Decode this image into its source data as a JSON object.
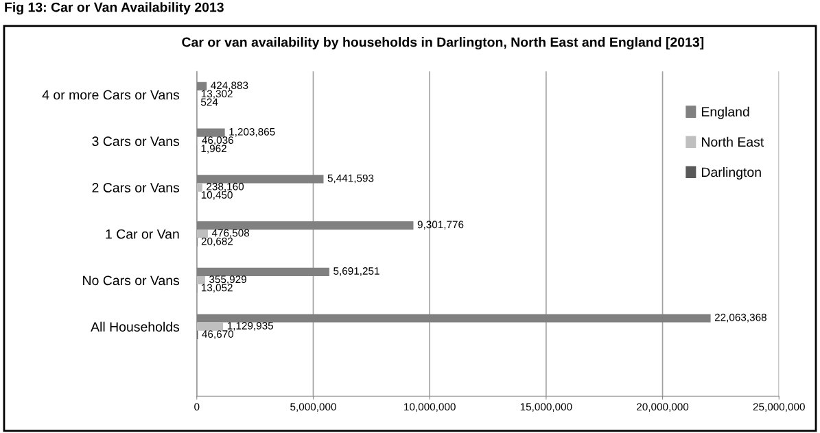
{
  "chart_data": {
    "type": "bar",
    "orientation": "horizontal",
    "title": "Car or van availability by households in Darlington, North East and England [2013]",
    "annotations": [
      "Fig 13: Car or Van Availability 2013"
    ],
    "categories": [
      "4 or more Cars or Vans",
      "3 Cars or Vans",
      "2 Cars or Vans",
      "1 Car or Van",
      "No Cars or Vans",
      "All Households",
      null
    ],
    "series": [
      {
        "name": "England",
        "color": "#808080",
        "values": [
          424883,
          1203865,
          5441593,
          9301776,
          5691251,
          22063368,
          null
        ],
        "value_labels": [
          "424,883",
          "1,203,865",
          "5,441,593",
          "9,301,776",
          "5,691,251",
          "22,063,368",
          null
        ]
      },
      {
        "name": "North East",
        "color": "#bfbfbf",
        "values": [
          13302,
          46036,
          238160,
          476508,
          355929,
          1129935,
          null
        ],
        "value_labels": [
          "13,302",
          "46,036",
          "238,160",
          "476,508",
          "355,929",
          "1,129,935",
          null
        ]
      },
      {
        "name": "Darlington",
        "color": "#595959",
        "values": [
          524,
          1962,
          10450,
          20682,
          13052,
          46670,
          null
        ],
        "value_labels": [
          "524",
          "1,962",
          "10,450",
          "20,682",
          "13,052",
          "46,670",
          null
        ]
      }
    ],
    "xlim": [
      0,
      25000000
    ],
    "xticks": [
      {
        "value": 0,
        "label": "0"
      },
      {
        "value": 5000000,
        "label": "5,000,000"
      },
      {
        "value": 10000000,
        "label": "10,000,000"
      },
      {
        "value": 15000000,
        "label": "15,000,000"
      },
      {
        "value": 20000000,
        "label": "20,000,000"
      },
      {
        "value": 25000000,
        "label": "25,000,000"
      }
    ],
    "grid": "x",
    "legend": "right"
  }
}
